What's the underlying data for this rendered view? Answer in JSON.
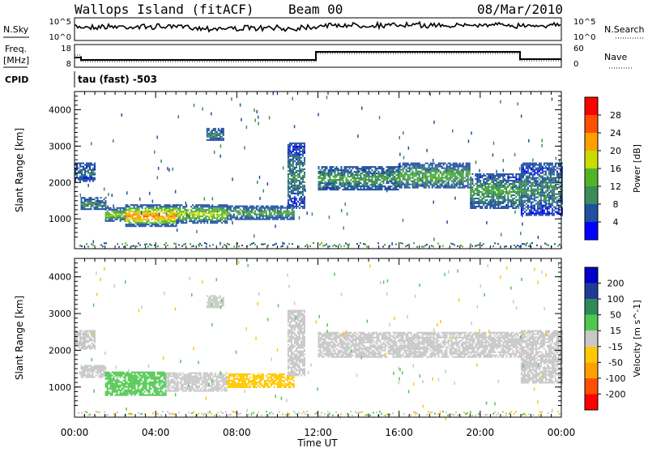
{
  "header": {
    "station": "Wallops Island (fitACF)",
    "beam": "Beam 00",
    "date": "08/Mar/2010"
  },
  "noise_panel": {
    "left_label": "N.Sky",
    "right_label": "N.Search",
    "left_ticks": [
      "10^5",
      "10^0"
    ],
    "right_ticks": [
      "10^5",
      "10^0"
    ]
  },
  "freq_panel": {
    "left_label": "Freq.",
    "left_unit": "[MHz]",
    "left_ticks": [
      "18",
      "8"
    ],
    "right_label": "Nave",
    "right_ticks": [
      "60",
      "0"
    ]
  },
  "cpid_panel": {
    "label": "CPID",
    "mode_text": "tau (fast) -503"
  },
  "colors": {
    "power_scale": [
      "#0000ff",
      "#2050a0",
      "#3c8c5a",
      "#50b428",
      "#c8dc00",
      "#ffa000",
      "#ff5000",
      "#ff0000"
    ],
    "velocity_scale": [
      "#ff0000",
      "#ff5000",
      "#ffa000",
      "#ffc800",
      "#c8c8c8",
      "#50c850",
      "#2e8b57",
      "#1e3c96",
      "#0000c8"
    ]
  },
  "chart_data": [
    {
      "type": "heatmap",
      "title": "Power",
      "ylabel": "Slant Range [km]",
      "xlabel": "Time UT",
      "x_ticks": [
        "00:00",
        "04:00",
        "08:00",
        "12:00",
        "16:00",
        "20:00",
        "00:00"
      ],
      "x_range_hours": [
        0,
        24
      ],
      "y_ticks": [
        "1000",
        "2000",
        "3000",
        "4000"
      ],
      "y_range_km": [
        180,
        4500
      ],
      "colorbar": {
        "label": "Power [dB]",
        "ticks": [
          "4",
          "8",
          "12",
          "16",
          "20",
          "24",
          "28"
        ],
        "range": [
          0,
          32
        ]
      },
      "echo_regions": [
        {
          "t_start": 0.0,
          "t_end": 1.0,
          "r_low": 2050,
          "r_high": 2550,
          "level": 8
        },
        {
          "t_start": 0.3,
          "t_end": 1.5,
          "r_low": 1250,
          "r_high": 1600,
          "level": 10
        },
        {
          "t_start": 1.5,
          "t_end": 2.5,
          "r_low": 950,
          "r_high": 1320,
          "level": 16
        },
        {
          "t_start": 2.5,
          "t_end": 5.0,
          "r_low": 800,
          "r_high": 1400,
          "level": 24
        },
        {
          "t_start": 5.0,
          "t_end": 7.5,
          "r_low": 900,
          "r_high": 1400,
          "level": 18
        },
        {
          "t_start": 7.5,
          "t_end": 10.8,
          "r_low": 1000,
          "r_high": 1370,
          "level": 12
        },
        {
          "t_start": 6.5,
          "t_end": 7.3,
          "r_low": 3150,
          "r_high": 3500,
          "level": 10
        },
        {
          "t_start": 10.5,
          "t_end": 11.3,
          "r_low": 1300,
          "r_high": 3100,
          "level": 10
        },
        {
          "t_start": 12.0,
          "t_end": 16.0,
          "r_low": 1800,
          "r_high": 2450,
          "level": 12
        },
        {
          "t_start": 16.0,
          "t_end": 19.5,
          "r_low": 1850,
          "r_high": 2550,
          "level": 13
        },
        {
          "t_start": 19.5,
          "t_end": 22.0,
          "r_low": 1300,
          "r_high": 2250,
          "level": 12
        },
        {
          "t_start": 22.0,
          "t_end": 24.0,
          "r_low": 1100,
          "r_high": 2550,
          "level": 10
        }
      ]
    },
    {
      "type": "heatmap",
      "title": "Velocity",
      "ylabel": "Slant Range [km]",
      "xlabel": "Time UT",
      "x_ticks": [
        "00:00",
        "04:00",
        "08:00",
        "12:00",
        "16:00",
        "20:00",
        "00:00"
      ],
      "x_range_hours": [
        0,
        24
      ],
      "y_ticks": [
        "1000",
        "2000",
        "3000",
        "4000"
      ],
      "y_range_km": [
        180,
        4500
      ],
      "colorbar": {
        "label": "Velocity [m s^-1]",
        "ticks": [
          "-200",
          "-100",
          "-50",
          "-15",
          "15",
          "50",
          "100",
          "200"
        ],
        "range": [
          -250,
          250
        ]
      },
      "echo_regions": [
        {
          "t_start": 0.0,
          "t_end": 1.0,
          "r_low": 2050,
          "r_high": 2550,
          "level": 0
        },
        {
          "t_start": 0.3,
          "t_end": 1.5,
          "r_low": 1250,
          "r_high": 1600,
          "level": 0
        },
        {
          "t_start": 1.5,
          "t_end": 4.5,
          "r_low": 800,
          "r_high": 1420,
          "level": 40
        },
        {
          "t_start": 4.5,
          "t_end": 7.5,
          "r_low": 900,
          "r_high": 1400,
          "level": 0
        },
        {
          "t_start": 7.5,
          "t_end": 10.8,
          "r_low": 1000,
          "r_high": 1370,
          "level": -40
        },
        {
          "t_start": 6.5,
          "t_end": 7.3,
          "r_low": 3150,
          "r_high": 3500,
          "level": 0
        },
        {
          "t_start": 10.5,
          "t_end": 11.3,
          "r_low": 1300,
          "r_high": 3100,
          "level": 0
        },
        {
          "t_start": 12.0,
          "t_end": 22.0,
          "r_low": 1800,
          "r_high": 2500,
          "level": 0
        },
        {
          "t_start": 22.0,
          "t_end": 24.0,
          "r_low": 1100,
          "r_high": 2550,
          "level": 0
        }
      ]
    }
  ]
}
